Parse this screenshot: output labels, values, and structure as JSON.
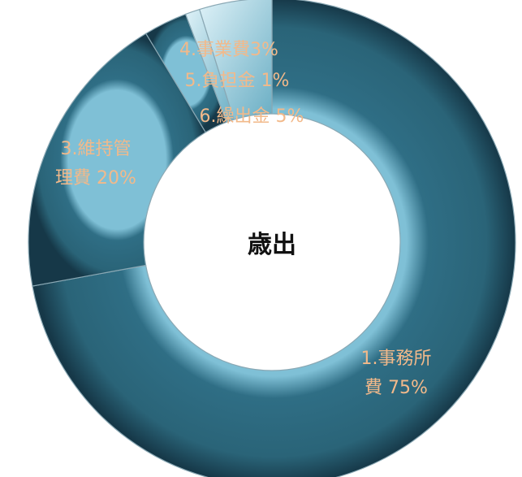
{
  "chart_data": {
    "type": "pie",
    "variant": "doughnut",
    "title": "歳出",
    "slices": [
      {
        "label_lines": [
          "1.事務所",
          "費 75%"
        ],
        "value": 75
      },
      {
        "label_lines": [
          "3.維持管",
          "理費 20%"
        ],
        "value": 20
      },
      {
        "label_lines": [
          "4.事業費3%"
        ],
        "value": 3
      },
      {
        "label_lines": [
          "5.負担金 1%"
        ],
        "value": 1
      },
      {
        "label_lines": [
          "6.繰出金 5%"
        ],
        "value": 5
      }
    ],
    "colors": {
      "fill": "#2f6e85",
      "fill_light": "#5aa0b8",
      "label": "#f2b98a",
      "title": "#111111"
    }
  }
}
